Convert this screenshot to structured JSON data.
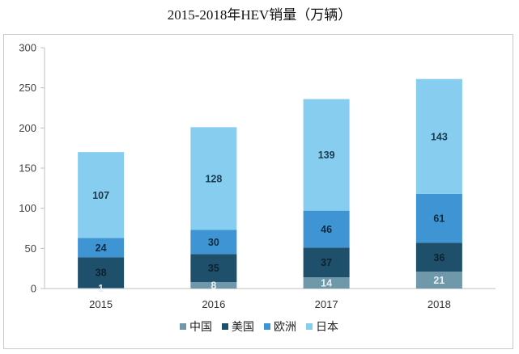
{
  "chart_data": {
    "type": "bar",
    "stacked": true,
    "title": "2015-2018年HEV销量（万辆）",
    "xlabel": "",
    "ylabel": "",
    "categories": [
      "2015",
      "2016",
      "2017",
      "2018"
    ],
    "ylim": [
      0,
      300
    ],
    "yticks": [
      0,
      50,
      100,
      150,
      200,
      250,
      300
    ],
    "grid": false,
    "legend_position": "bottom",
    "series": [
      {
        "name": "中国",
        "values": [
          1,
          8,
          14,
          21
        ],
        "color": "#6f98aa",
        "label_color": "#e8eef1"
      },
      {
        "name": "美国",
        "values": [
          38,
          35,
          37,
          36
        ],
        "color": "#1e4f6b",
        "label_color": "#0d2230"
      },
      {
        "name": "欧洲",
        "values": [
          24,
          30,
          46,
          61
        ],
        "color": "#3f95d4",
        "label_color": "#0d2a40"
      },
      {
        "name": "日本",
        "values": [
          107,
          128,
          139,
          143
        ],
        "color": "#87cdf0",
        "label_color": "#1a3a50"
      }
    ]
  }
}
